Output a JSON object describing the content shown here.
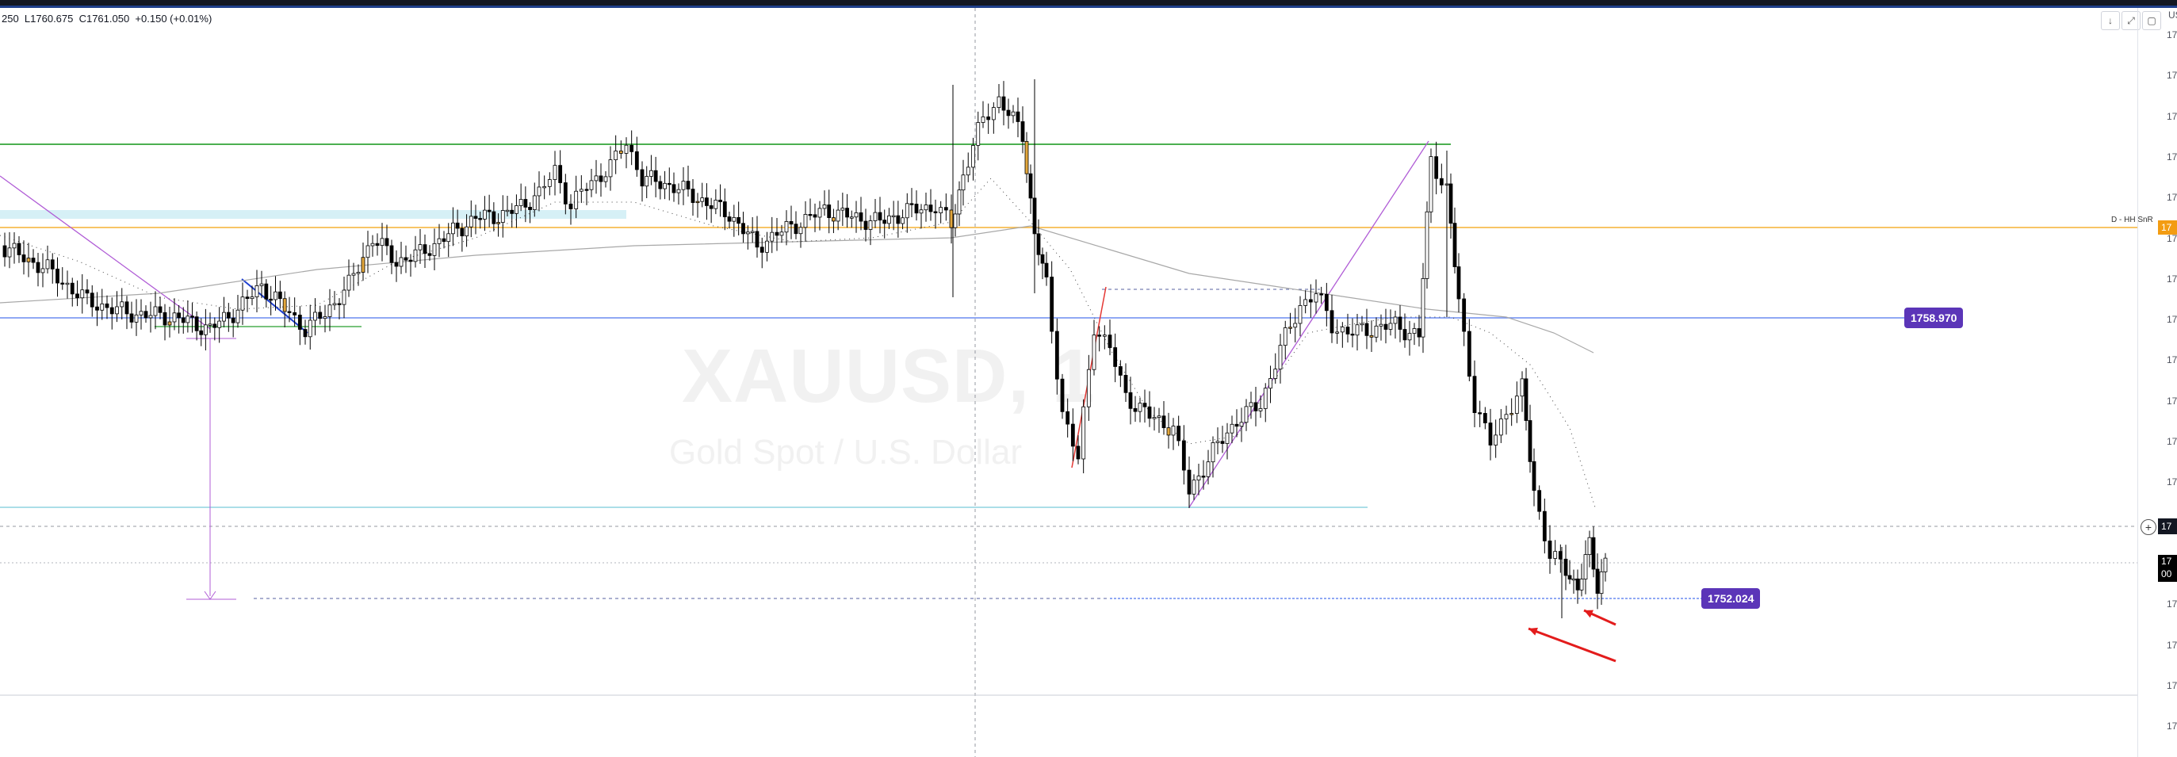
{
  "header": {
    "ohlc_text": "250  L1760.675  C1761.050  +0.150 (+0.01%)",
    "currency": "US"
  },
  "watermark": {
    "symbol": "XAUUSD, 1",
    "description": "Gold Spot / U.S. Dollar"
  },
  "price_labels": {
    "upper_level": "1758.970",
    "lower_level": "1752.024"
  },
  "indicator_label": "D - HH SnR",
  "axis_prefix": "17",
  "axis_rows": 19,
  "price_box_current": "17",
  "price_box_last": "17",
  "price_box_last_sub": "00",
  "price_box_indicator": "17",
  "toolbar": [
    "↓",
    "⤢",
    "▢"
  ],
  "colors": {
    "bull": "#ffffff",
    "bear": "#000000",
    "highlight": "#e3a73c",
    "green_level": "#4caf50",
    "orange_level": "#f5b234",
    "blue_level": "#6c8cf0",
    "cyan_level": "#8fd3e0",
    "purple": "#b05cd6",
    "badge": "#5b35b8",
    "arrows": "#e31c1c"
  }
}
